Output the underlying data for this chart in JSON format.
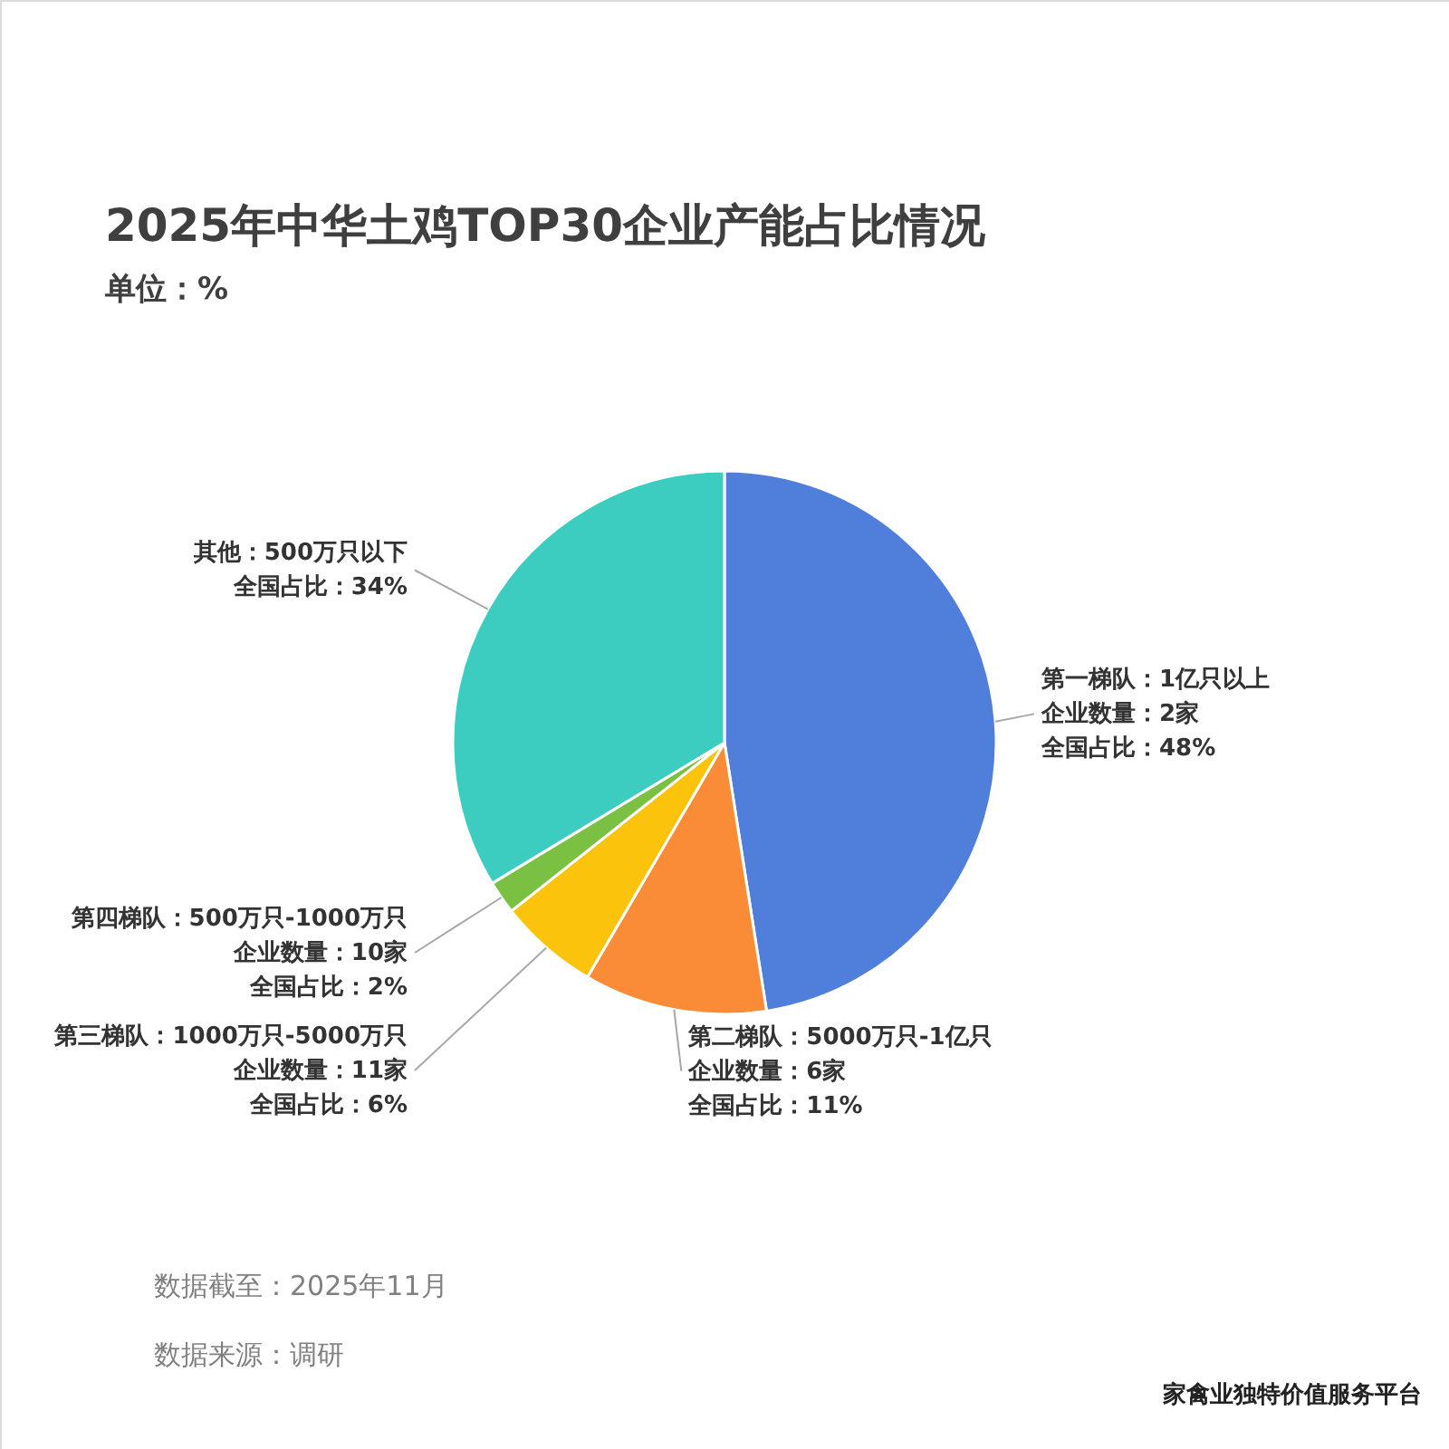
{
  "chart_data": {
    "type": "pie",
    "title": "2025年中华土鸡TOP30企业产能占比情况",
    "subtitle": "单位：%",
    "categories": [
      "第一梯队：1亿只以上",
      "第二梯队：5000万只-1亿只",
      "第三梯队：1000万只-5000万只",
      "第四梯队：500万只-1000万只",
      "其他：500万只以下"
    ],
    "values": [
      48,
      11,
      6,
      2,
      34
    ],
    "colors": [
      "#4f7fdb",
      "#fa8c37",
      "#fcc30d",
      "#7ac143",
      "#3ccdc0"
    ],
    "value_labels": [
      "全国占比：48%",
      "全国占比：11%",
      "全国占比：6%",
      "全国占比：2%",
      "全国占比：34%"
    ],
    "annotations": [
      {
        "text": "企业数量：2家",
        "x": "第一梯队：1亿只以上"
      },
      {
        "text": "企业数量：6家",
        "x": "第二梯队：5000万只-1亿只"
      },
      {
        "text": "企业数量：11家",
        "x": "第三梯队：1000万只-5000万只"
      },
      {
        "text": "企业数量：10家",
        "x": "第四梯队：500万只-1000万只"
      },
      "数据截至：2025年11月",
      "数据来源：调研",
      "家禽业独特价值服务平台"
    ]
  }
}
